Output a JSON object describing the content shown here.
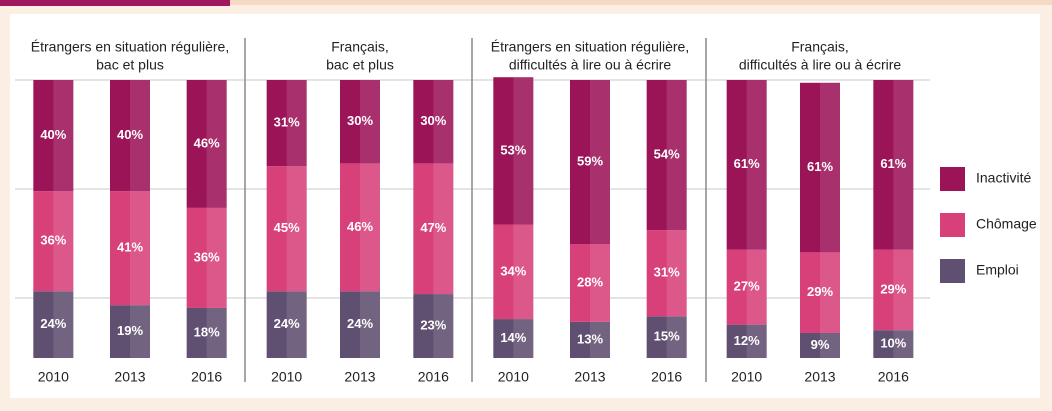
{
  "chart_data": [
    {
      "type": "bar",
      "stacked": true,
      "title": [
        "Étrangers en situation régulière,",
        "bac et plus"
      ],
      "categories": [
        "2010",
        "2013",
        "2016"
      ],
      "ylim": [
        0,
        100
      ],
      "series": [
        {
          "name": "Emploi",
          "color": "#5f4f70",
          "values": [
            24,
            19,
            18
          ],
          "value_labels": [
            "24%",
            "19%",
            "18%"
          ]
        },
        {
          "name": "Chômage",
          "color": "#d8407a",
          "values": [
            36,
            41,
            36
          ],
          "value_labels": [
            "36%",
            "41%",
            "36%"
          ]
        },
        {
          "name": "Inactivité",
          "color": "#9c1458",
          "values": [
            40,
            40,
            46
          ],
          "value_labels": [
            "40%",
            "40%",
            "46%"
          ]
        }
      ]
    },
    {
      "type": "bar",
      "stacked": true,
      "title": [
        "Français,",
        "bac et plus"
      ],
      "categories": [
        "2010",
        "2013",
        "2016"
      ],
      "ylim": [
        0,
        100
      ],
      "series": [
        {
          "name": "Emploi",
          "color": "#5f4f70",
          "values": [
            24,
            24,
            23
          ],
          "value_labels": [
            "24%",
            "24%",
            "23%"
          ]
        },
        {
          "name": "Chômage",
          "color": "#d8407a",
          "values": [
            45,
            46,
            47
          ],
          "value_labels": [
            "45%",
            "46%",
            "47%"
          ]
        },
        {
          "name": "Inactivité",
          "color": "#9c1458",
          "values": [
            31,
            30,
            30
          ],
          "value_labels": [
            "31%",
            "30%",
            "30%"
          ]
        }
      ]
    },
    {
      "type": "bar",
      "stacked": true,
      "title": [
        "Étrangers en situation régulière,",
        "difficultés à lire ou à écrire"
      ],
      "categories": [
        "2010",
        "2013",
        "2016"
      ],
      "ylim": [
        0,
        100
      ],
      "series": [
        {
          "name": "Emploi",
          "color": "#5f4f70",
          "values": [
            14,
            13,
            15
          ],
          "value_labels": [
            "14%",
            "13%",
            "15%"
          ]
        },
        {
          "name": "Chômage",
          "color": "#d8407a",
          "values": [
            34,
            28,
            31
          ],
          "value_labels": [
            "34%",
            "28%",
            "31%"
          ]
        },
        {
          "name": "Inactivité",
          "color": "#9c1458",
          "values": [
            53,
            59,
            54
          ],
          "value_labels": [
            "53%",
            "59%",
            "54%"
          ]
        }
      ]
    },
    {
      "type": "bar",
      "stacked": true,
      "title": [
        "Français,",
        "difficultés à lire ou à écrire"
      ],
      "categories": [
        "2010",
        "2013",
        "2016"
      ],
      "ylim": [
        0,
        100
      ],
      "series": [
        {
          "name": "Emploi",
          "color": "#5f4f70",
          "values": [
            12,
            9,
            10
          ],
          "value_labels": [
            "12%",
            "9%",
            "10%"
          ]
        },
        {
          "name": "Chômage",
          "color": "#d8407a",
          "values": [
            27,
            29,
            29
          ],
          "value_labels": [
            "27%",
            "29%",
            "29%"
          ]
        },
        {
          "name": "Inactivité",
          "color": "#9c1458",
          "values": [
            61,
            61,
            61
          ],
          "value_labels": [
            "61%",
            "61%",
            "61%"
          ]
        }
      ]
    }
  ]
}
